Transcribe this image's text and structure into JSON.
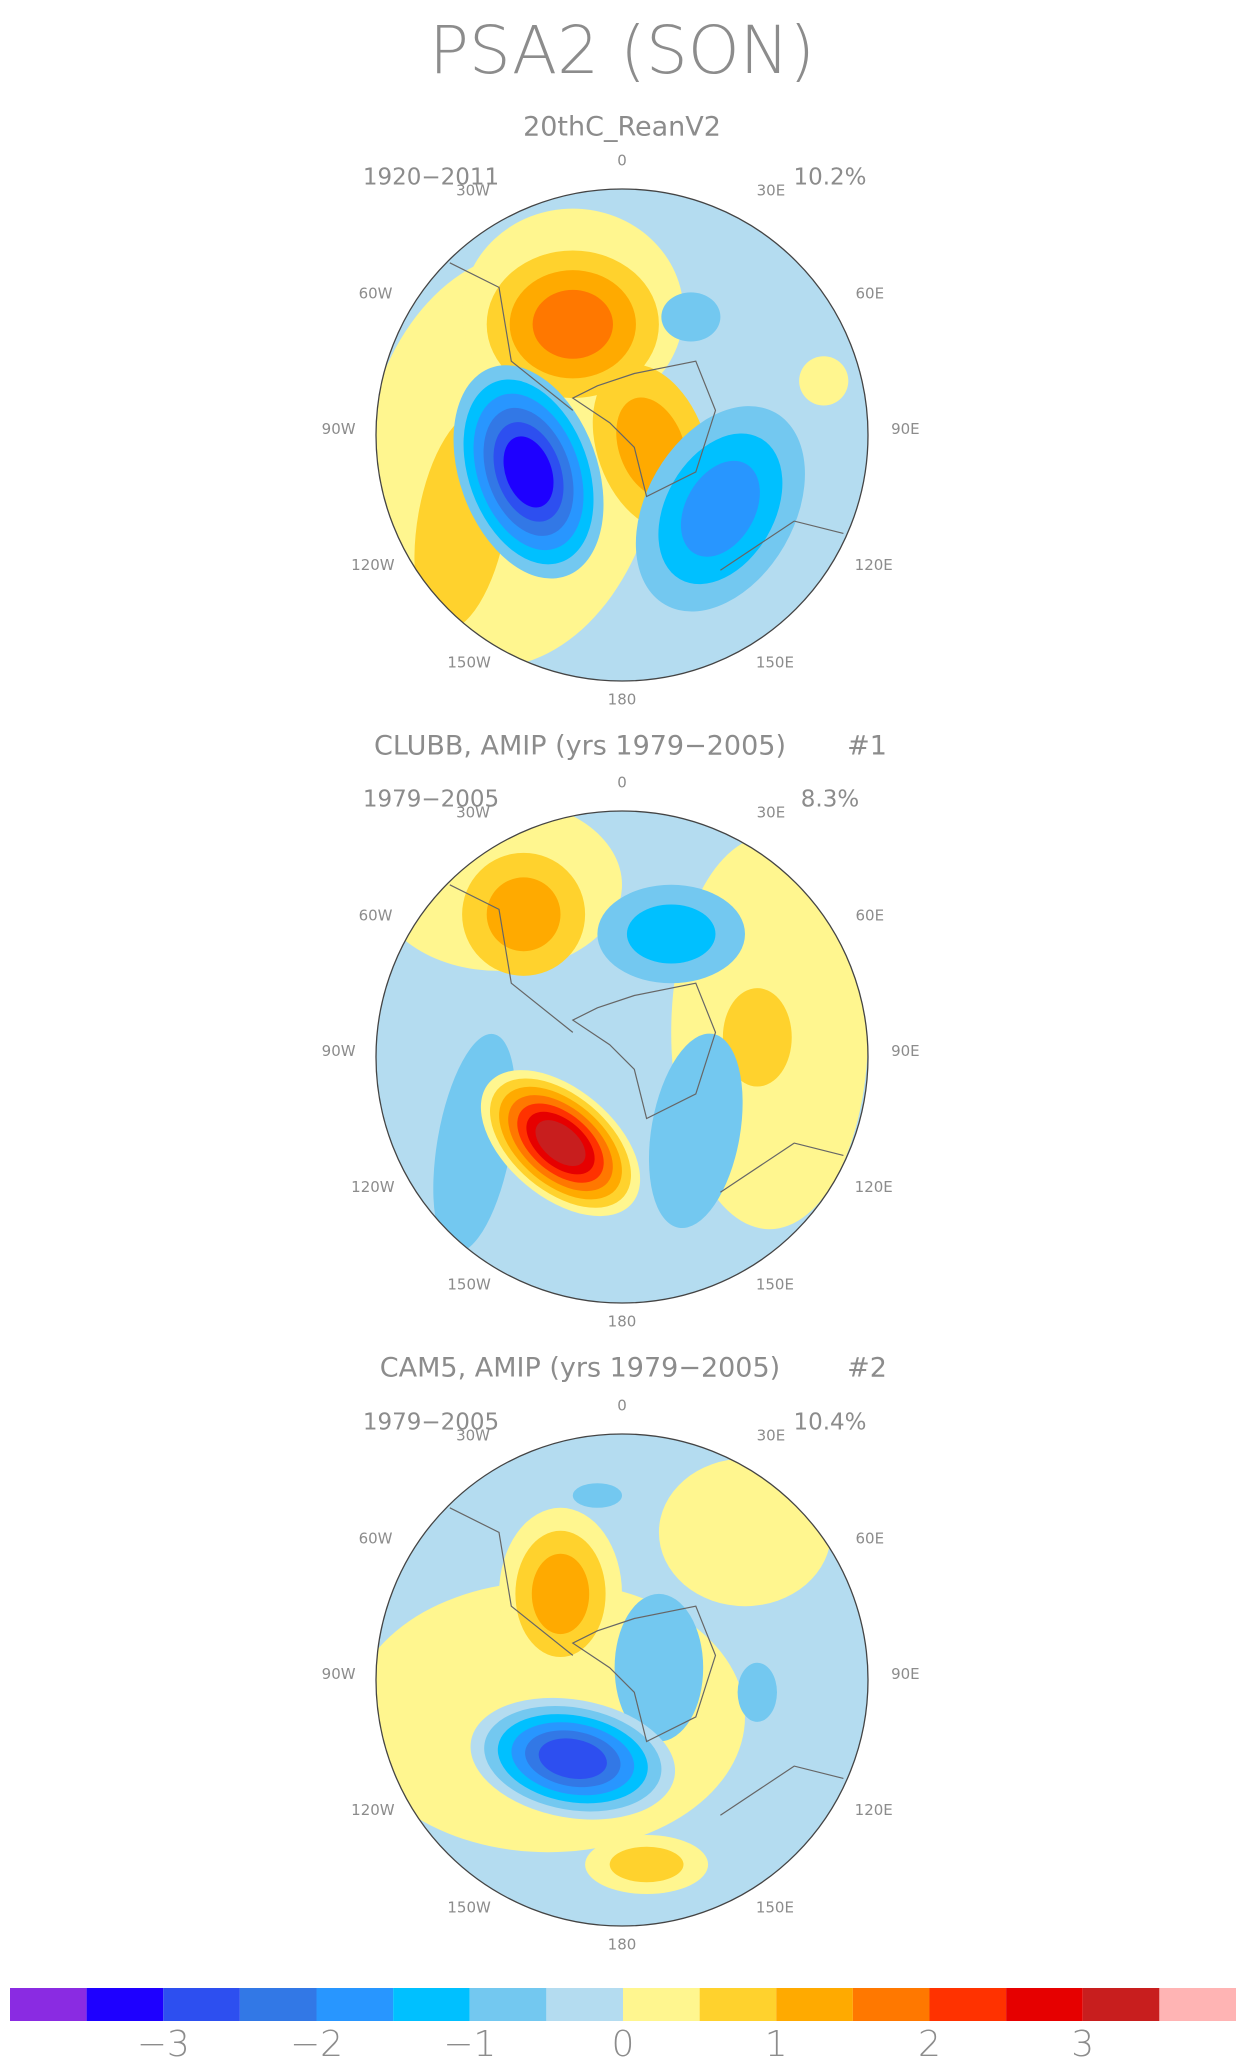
{
  "title": "PSA2 (SON)",
  "longitude_labels": [
    "0",
    "30W",
    "30E",
    "60W",
    "60E",
    "90W",
    "90E",
    "120W",
    "120E",
    "150W",
    "150E",
    "180"
  ],
  "panels": [
    {
      "title": "20thC_ReanV2",
      "period": "1920−2011",
      "variance": "10.2%"
    },
    {
      "title": "CLUBB, AMIP (yrs 1979−2005)",
      "run": "#1",
      "period": "1979−2005",
      "variance": "8.3%"
    },
    {
      "title": "CAM5, AMIP (yrs 1979−2005)",
      "run": "#2",
      "period": "1979−2005",
      "variance": "10.4%"
    }
  ],
  "colorbar": {
    "colors": [
      "#8a2be2",
      "#1e00ff",
      "#2d4ff0",
      "#3278e6",
      "#2896ff",
      "#00c0ff",
      "#73c8f0",
      "#b4dcf0",
      "#fff68f",
      "#ffd22d",
      "#ffaa00",
      "#ff7800",
      "#ff3200",
      "#e60000",
      "#c81e1e",
      "#ffb4b4"
    ],
    "labels": [
      "−3",
      "−2",
      "−1",
      "0",
      "1",
      "2",
      "3"
    ]
  }
}
